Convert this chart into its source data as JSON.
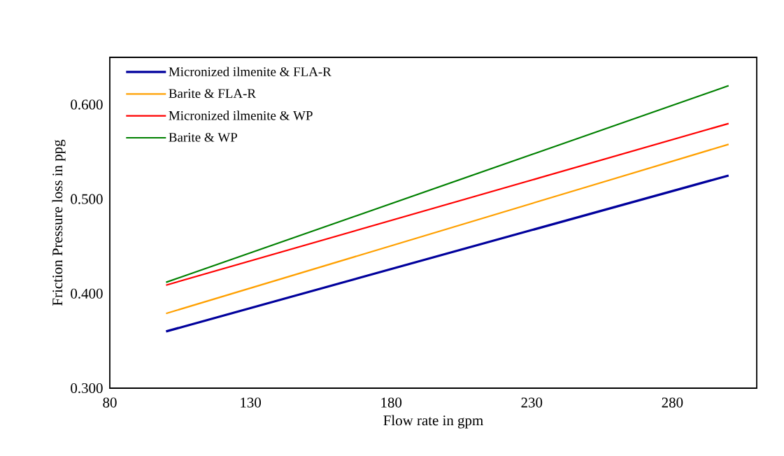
{
  "chart_data": {
    "type": "line",
    "xlabel": "Flow rate in gpm",
    "ylabel": "Friction Pressure loss in ppg",
    "x": [
      100,
      300
    ],
    "series": [
      {
        "name": "Micronized ilmenite & FLA-R",
        "color": "#00009c",
        "values": [
          0.36,
          0.525
        ]
      },
      {
        "name": "Barite & FLA-R",
        "color": "#ffa000",
        "values": [
          0.379,
          0.558
        ]
      },
      {
        "name": "Micronized ilmenite & WP",
        "color": "#ff0000",
        "values": [
          0.409,
          0.58
        ]
      },
      {
        "name": "Barite & WP",
        "color": "#008000",
        "values": [
          0.412,
          0.62
        ]
      }
    ],
    "xlim": [
      80,
      310
    ],
    "xticks": [
      80,
      130,
      180,
      230,
      280
    ],
    "ylim": [
      0.3,
      0.65
    ],
    "yticks": [
      {
        "value": 0.3,
        "label": "0.300"
      },
      {
        "value": 0.4,
        "label": "0.400"
      },
      {
        "value": 0.5,
        "label": "0.500"
      },
      {
        "value": 0.6,
        "label": "0.600"
      }
    ],
    "grid": false,
    "legend": "top left",
    "marker": "none",
    "line_style": "solid"
  }
}
